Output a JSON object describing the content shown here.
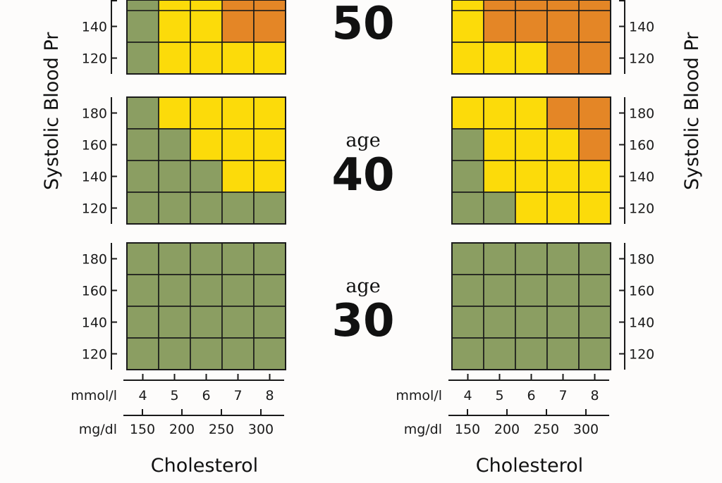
{
  "colors": {
    "green": "#8b9e62",
    "yellow": "#fcdb0a",
    "orange": "#e48626",
    "grid": "#1a1a1a",
    "axis": "#1a1a1a"
  },
  "chart_data": {
    "type": "heatmap",
    "title": "",
    "ylabel": "Systolic Blood Pressure",
    "ylabel_visible": "Systolic Blood Pr",
    "xlabel": "Cholesterol",
    "x_mmol": {
      "unit": "mmol/l",
      "ticks": [
        "4",
        "5",
        "6",
        "7",
        "8"
      ]
    },
    "x_mgdl": {
      "unit": "mg/dl",
      "ticks": [
        "150",
        "200",
        "250",
        "300"
      ]
    },
    "y_ticks": [
      "180",
      "160",
      "140",
      "120"
    ],
    "legend_levels": [
      "green",
      "yellow",
      "orange"
    ],
    "panels": [
      {
        "name": "left-age-50",
        "age_word": "",
        "age": "50",
        "y_ticks_visible": [
          "140",
          "120"
        ],
        "rows": [
          [
            "green",
            "yellow",
            "yellow",
            "orange",
            "orange"
          ],
          [
            "green",
            "yellow",
            "yellow",
            "yellow",
            "yellow"
          ]
        ]
      },
      {
        "name": "right-age-50",
        "y_ticks_visible": [
          "140",
          "120"
        ],
        "rows": [
          [
            "yellow",
            "orange",
            "orange",
            "orange",
            "orange"
          ],
          [
            "yellow",
            "yellow",
            "yellow",
            "orange",
            "orange"
          ]
        ]
      },
      {
        "name": "left-age-40",
        "age_word": "age",
        "age": "40",
        "y_ticks_visible": [
          "180",
          "160",
          "140",
          "120"
        ],
        "rows": [
          [
            "green",
            "yellow",
            "yellow",
            "yellow",
            "yellow"
          ],
          [
            "green",
            "green",
            "yellow",
            "yellow",
            "yellow"
          ],
          [
            "green",
            "green",
            "green",
            "yellow",
            "yellow"
          ],
          [
            "green",
            "green",
            "green",
            "green",
            "green"
          ]
        ]
      },
      {
        "name": "right-age-40",
        "y_ticks_visible": [
          "180",
          "160",
          "140",
          "120"
        ],
        "rows": [
          [
            "yellow",
            "yellow",
            "yellow",
            "orange",
            "orange"
          ],
          [
            "green",
            "yellow",
            "yellow",
            "yellow",
            "orange"
          ],
          [
            "green",
            "yellow",
            "yellow",
            "yellow",
            "yellow"
          ],
          [
            "green",
            "green",
            "yellow",
            "yellow",
            "yellow"
          ]
        ]
      },
      {
        "name": "left-age-30",
        "age_word": "age",
        "age": "30",
        "y_ticks_visible": [
          "180",
          "160",
          "140",
          "120"
        ],
        "rows": [
          [
            "green",
            "green",
            "green",
            "green",
            "green"
          ],
          [
            "green",
            "green",
            "green",
            "green",
            "green"
          ],
          [
            "green",
            "green",
            "green",
            "green",
            "green"
          ],
          [
            "green",
            "green",
            "green",
            "green",
            "green"
          ]
        ]
      },
      {
        "name": "right-age-30",
        "y_ticks_visible": [
          "180",
          "160",
          "140",
          "120"
        ],
        "rows": [
          [
            "green",
            "green",
            "green",
            "green",
            "green"
          ],
          [
            "green",
            "green",
            "green",
            "green",
            "green"
          ],
          [
            "green",
            "green",
            "green",
            "green",
            "green"
          ],
          [
            "green",
            "green",
            "green",
            "green",
            "green"
          ]
        ]
      }
    ]
  }
}
